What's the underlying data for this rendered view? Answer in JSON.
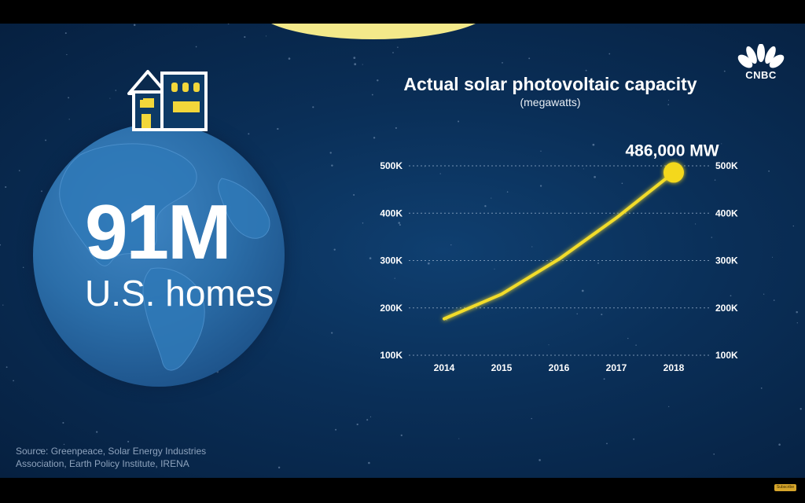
{
  "headline": {
    "value": "91M",
    "caption": "U.S. homes"
  },
  "brand": {
    "name": "CNBC",
    "logo_icon": "peacock-icon"
  },
  "source_text": "Source: Greenpeace, Solar Energy Industries Association, Earth Policy Institute, IRENA",
  "subscribe_label": "Subscribe",
  "colors": {
    "background": "#0a2f58",
    "line": "#f2dc2a",
    "marker": "#f4d81e",
    "earth": "#2b6ea9",
    "text": "#ffffff"
  },
  "chart_data": {
    "type": "line",
    "title": "Actual solar photovoltaic capacity",
    "subtitle": "(megawatts)",
    "x": [
      "2014",
      "2015",
      "2016",
      "2017",
      "2018"
    ],
    "series": [
      {
        "values": [
          177000,
          229000,
          303000,
          390000,
          486000
        ]
      }
    ],
    "yticks": [
      "100K",
      "200K",
      "300K",
      "400K",
      "500K"
    ],
    "ytick_values": [
      100000,
      200000,
      300000,
      400000,
      500000
    ],
    "ylim": [
      100000,
      500000
    ],
    "grid": true,
    "y_axis_both_sides": true,
    "annotation": {
      "text": "486,000 MW",
      "x": "2018",
      "value": 486000
    }
  }
}
